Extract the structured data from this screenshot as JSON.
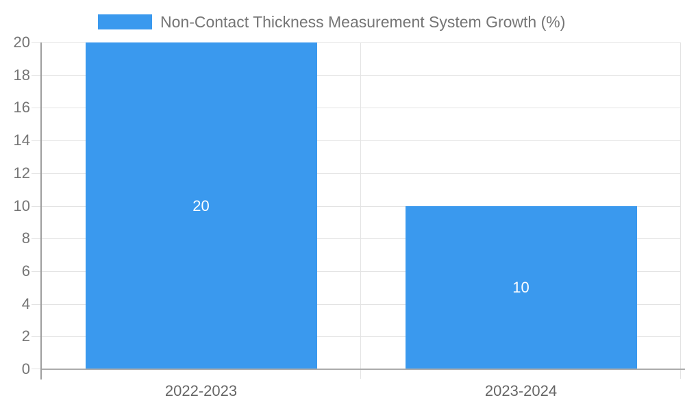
{
  "legend": {
    "label": "Non-Contact Thickness Measurement System Growth (%)"
  },
  "chart_data": {
    "type": "bar",
    "categories": [
      "2022-2023",
      "2023-2024"
    ],
    "series": [
      {
        "name": "Non-Contact Thickness Measurement System Growth (%)",
        "values": [
          20,
          10
        ]
      }
    ],
    "data_labels": [
      "20",
      "10"
    ],
    "title": "",
    "xlabel": "",
    "ylabel": "",
    "ylim": [
      0,
      20
    ],
    "ytick_step": 2,
    "ytick_labels": [
      "0",
      "2",
      "4",
      "6",
      "8",
      "10",
      "12",
      "14",
      "16",
      "18",
      "20"
    ],
    "grid": true,
    "legend_position": "top",
    "colors": {
      "bar": "#3a99ee",
      "data_label": "#ffffff",
      "gridline": "#e3e3e3",
      "axis_line": "#9e9e9e",
      "tick_label": "#757575",
      "category_label": "#666666"
    }
  }
}
